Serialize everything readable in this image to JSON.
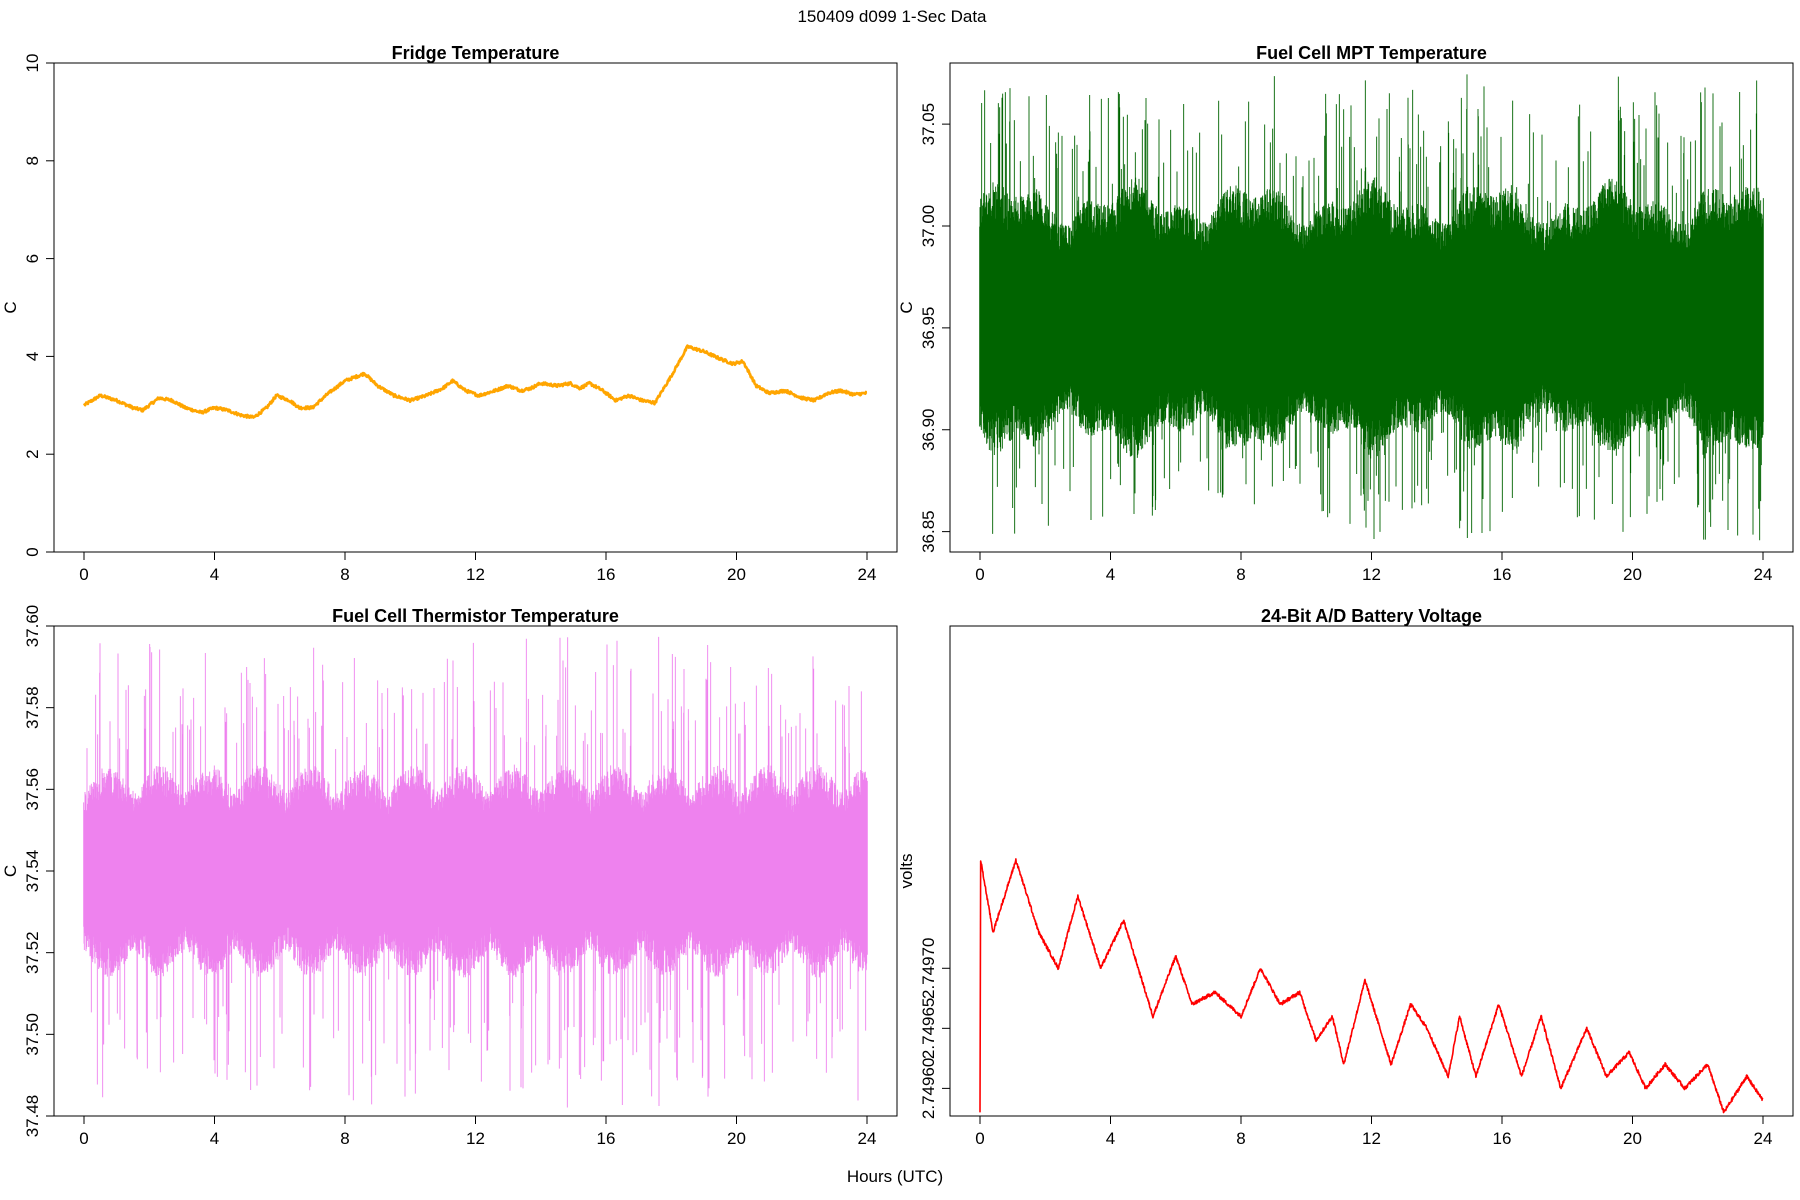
{
  "figure": {
    "title": "150409   d099   1-Sec Data",
    "xlabel": "Hours (UTC)"
  },
  "chart_data": [
    {
      "type": "line",
      "title": "Fridge Temperature",
      "xlabel": "",
      "ylabel": "C",
      "xlim": [
        0,
        24
      ],
      "ylim": [
        0,
        10
      ],
      "xticks": [
        0,
        4,
        8,
        12,
        16,
        20,
        24
      ],
      "yticks": [
        0,
        2,
        4,
        6,
        8,
        10
      ],
      "ytick_labels": [
        "0",
        "2",
        "4",
        "6",
        "8",
        "10"
      ],
      "color": "#FFA500",
      "noise": 0.03,
      "x": [
        0,
        0.5,
        1,
        1.5,
        1.8,
        2.3,
        2.7,
        3.1,
        3.6,
        4.0,
        4.4,
        4.8,
        5.2,
        5.6,
        5.9,
        6.3,
        6.6,
        7.0,
        7.5,
        8.0,
        8.6,
        9.0,
        9.5,
        10.0,
        10.5,
        11.0,
        11.3,
        11.7,
        12.1,
        12.6,
        13.0,
        13.4,
        13.7,
        14.0,
        14.5,
        14.9,
        15.2,
        15.5,
        15.9,
        16.3,
        16.7,
        17.1,
        17.5,
        18.0,
        18.5,
        19.0,
        19.5,
        19.9,
        20.2,
        20.6,
        21.0,
        21.5,
        22.0,
        22.4,
        22.8,
        23.2,
        23.6,
        24.0
      ],
      "y": [
        3.0,
        3.2,
        3.1,
        2.95,
        2.9,
        3.15,
        3.1,
        2.95,
        2.85,
        2.95,
        2.9,
        2.8,
        2.75,
        2.95,
        3.2,
        3.1,
        2.95,
        2.95,
        3.25,
        3.5,
        3.65,
        3.4,
        3.2,
        3.1,
        3.2,
        3.35,
        3.5,
        3.3,
        3.2,
        3.3,
        3.4,
        3.3,
        3.35,
        3.45,
        3.4,
        3.45,
        3.35,
        3.45,
        3.3,
        3.1,
        3.2,
        3.1,
        3.05,
        3.6,
        4.2,
        4.1,
        3.95,
        3.85,
        3.9,
        3.4,
        3.25,
        3.3,
        3.15,
        3.1,
        3.25,
        3.3,
        3.22,
        3.25
      ]
    },
    {
      "type": "line",
      "title": "Fuel Cell MPT Temperature",
      "xlabel": "",
      "ylabel": "C",
      "xlim": [
        0,
        24
      ],
      "ylim": [
        36.84,
        37.08
      ],
      "xticks": [
        0,
        4,
        8,
        12,
        16,
        20,
        24
      ],
      "yticks": [
        36.85,
        36.9,
        36.95,
        37.0,
        37.05
      ],
      "ytick_labels": [
        "36.85",
        "36.90",
        "36.95",
        "37.00",
        "37.05"
      ],
      "color": "#006400",
      "band_center": 36.955,
      "band_core_halfwidth": 0.055,
      "spike_up_max": 37.077,
      "spike_down_min": 36.845
    },
    {
      "type": "line",
      "title": "Fuel Cell Thermistor Temperature",
      "xlabel": "",
      "ylabel": "C",
      "xlim": [
        0,
        24
      ],
      "ylim": [
        37.48,
        37.6
      ],
      "xticks": [
        0,
        4,
        8,
        12,
        16,
        20,
        24
      ],
      "yticks": [
        37.48,
        37.5,
        37.52,
        37.54,
        37.56,
        37.58,
        37.6
      ],
      "ytick_labels": [
        "37.48",
        "37.50",
        "37.52",
        "37.54",
        "37.56",
        "37.58",
        "37.60"
      ],
      "color": "#EE82EE",
      "band_center": 37.54,
      "band_core_halfwidth": 0.022,
      "spike_up_max": 37.598,
      "spike_down_min": 37.482
    },
    {
      "type": "line",
      "title": "24-Bit A/D Battery Voltage",
      "xlabel": "",
      "ylabel": "volts",
      "xlim": [
        0,
        24
      ],
      "ylim": [
        2.749577,
        2.749985
      ],
      "xticks": [
        0,
        4,
        8,
        12,
        16,
        20,
        24
      ],
      "yticks": [
        2.7496,
        2.74965,
        2.7497
      ],
      "ytick_labels": [
        "2.74960",
        "2.74965",
        "2.74970"
      ],
      "color": "#FF0000",
      "noise": 1.5e-06,
      "x": [
        0.0,
        0.02,
        0.4,
        1.1,
        1.8,
        2.4,
        3.0,
        3.7,
        4.4,
        5.3,
        6.0,
        6.5,
        7.2,
        7.6,
        8.0,
        8.6,
        9.2,
        9.8,
        10.3,
        10.8,
        11.15,
        11.8,
        12.6,
        13.2,
        13.7,
        14.35,
        14.7,
        15.2,
        15.9,
        16.6,
        17.2,
        17.8,
        18.6,
        19.2,
        19.9,
        20.4,
        21.0,
        21.6,
        22.3,
        22.8,
        23.5,
        24.0
      ],
      "y": [
        2.74958,
        2.74979,
        2.74973,
        2.74979,
        2.74973,
        2.7497,
        2.74976,
        2.7497,
        2.74974,
        2.74966,
        2.74971,
        2.74967,
        2.74968,
        2.74967,
        2.74966,
        2.7497,
        2.74967,
        2.74968,
        2.74964,
        2.74966,
        2.74962,
        2.74969,
        2.74962,
        2.74967,
        2.74965,
        2.74961,
        2.74966,
        2.74961,
        2.74967,
        2.74961,
        2.74966,
        2.7496,
        2.74965,
        2.74961,
        2.74963,
        2.7496,
        2.74962,
        2.7496,
        2.74962,
        2.74958,
        2.74961,
        2.74959
      ]
    }
  ]
}
